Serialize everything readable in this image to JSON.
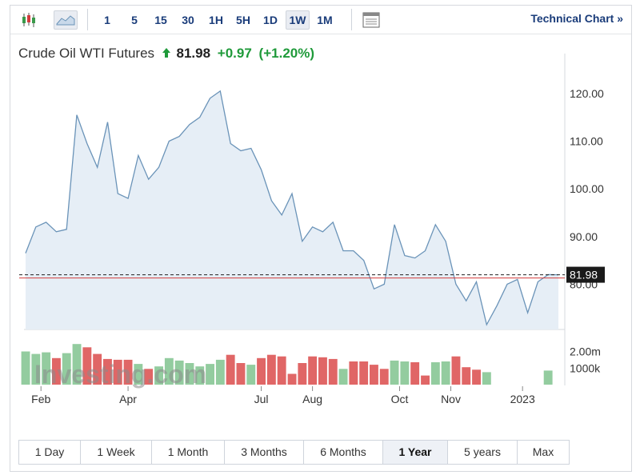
{
  "toolbar": {
    "intervals": [
      "1",
      "5",
      "15",
      "30",
      "1H",
      "5H",
      "1D",
      "1W",
      "1M"
    ],
    "active_interval": "1W",
    "technical_link": "Technical Chart »"
  },
  "quote": {
    "name": "Crude Oil WTI Futures",
    "last": "81.98",
    "change": "+0.97",
    "change_pct": "(+1.20%)"
  },
  "watermark": "Investing.com",
  "colors": {
    "line": "#6a93b8",
    "area": "#e6eef6",
    "up_bar": "#93cc9f",
    "down_bar": "#e06666",
    "last_label": "#1a1a1a",
    "last_line": "#d23c3c"
  },
  "chart_data": {
    "type": "area",
    "price": {
      "values": [
        86.5,
        92,
        93,
        91,
        91.5,
        115.5,
        109.5,
        104.5,
        114,
        99,
        98,
        107,
        102,
        104.5,
        110,
        111,
        113.5,
        115,
        119,
        120.5,
        109.5,
        108,
        108.5,
        104,
        97.5,
        94.5,
        99,
        89,
        92,
        91,
        93,
        87,
        87,
        85,
        79,
        80,
        92.5,
        86,
        85.5,
        87,
        92.5,
        89,
        80,
        76.5,
        80.5,
        71.5,
        75.5,
        80,
        81,
        74,
        80.5,
        82,
        81.98
      ],
      "ylim": [
        70.5,
        122
      ],
      "yticks": [
        "120.00",
        "110.00",
        "100.00",
        "90.00",
        "80.00"
      ],
      "ytick_values": [
        120,
        110,
        100,
        90,
        80
      ],
      "last": "81.98",
      "reference_line": 81.98
    },
    "volume": {
      "values": [
        2.0,
        1.85,
        1.95,
        1.6,
        1.9,
        2.45,
        2.25,
        1.85,
        1.55,
        1.5,
        1.5,
        1.25,
        0.95,
        1.1,
        1.6,
        1.45,
        1.3,
        1.1,
        1.25,
        1.5,
        1.8,
        1.3,
        1.2,
        1.6,
        1.8,
        1.7,
        0.65,
        1.3,
        1.7,
        1.65,
        1.55,
        0.95,
        1.4,
        1.4,
        1.2,
        0.95,
        1.45,
        1.4,
        1.35,
        0.55,
        1.35,
        1.4,
        1.7,
        1.05,
        0.9,
        0.75,
        0,
        0,
        0,
        0,
        0,
        0.85,
        0
      ],
      "direction": [
        "u",
        "u",
        "u",
        "d",
        "u",
        "u",
        "d",
        "d",
        "d",
        "d",
        "d",
        "u",
        "d",
        "u",
        "u",
        "u",
        "u",
        "u",
        "u",
        "u",
        "d",
        "d",
        "u",
        "d",
        "d",
        "d",
        "d",
        "d",
        "d",
        "d",
        "d",
        "u",
        "d",
        "d",
        "d",
        "d",
        "u",
        "u",
        "d",
        "d",
        "u",
        "u",
        "d",
        "d",
        "d",
        "u",
        "u",
        "u",
        "u",
        "u",
        "u",
        "u",
        "u"
      ],
      "yticks": [
        "2.00m",
        "1000k"
      ],
      "ytick_values": [
        2.0,
        1.0
      ],
      "ylim": [
        0,
        2.7
      ]
    },
    "x_ticks": [
      {
        "label": "Feb",
        "index": 1.5
      },
      {
        "label": "Apr",
        "index": 10
      },
      {
        "label": "Jul",
        "index": 23
      },
      {
        "label": "Aug",
        "index": 28
      },
      {
        "label": "Oct",
        "index": 36.5
      },
      {
        "label": "Nov",
        "index": 41.5
      },
      {
        "label": "2023",
        "index": 48.5
      }
    ],
    "grid": false
  },
  "ranges": {
    "items": [
      "1 Day",
      "1 Week",
      "1 Month",
      "3 Months",
      "6 Months",
      "1 Year",
      "5 years",
      "Max"
    ],
    "active": "1 Year"
  }
}
